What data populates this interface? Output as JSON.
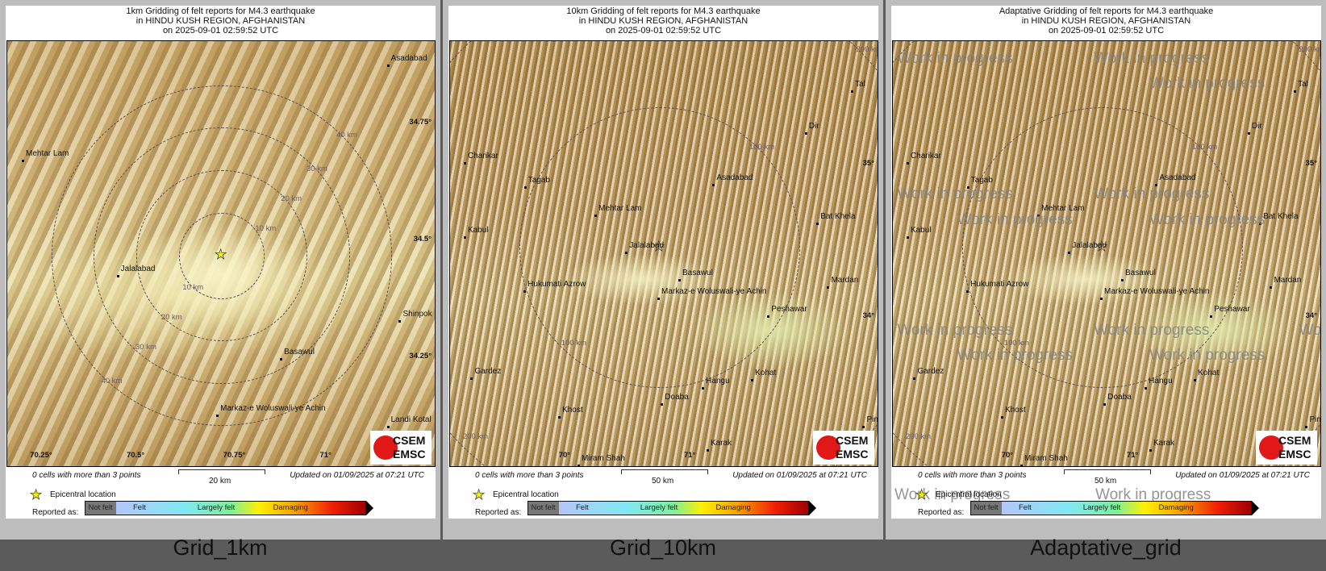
{
  "panels": [
    {
      "title": [
        "1km Gridding of felt reports for M4.3 earthquake",
        "in HINDU KUSH REGION, AFGHANISTAN",
        "on  2025-09-01 02:59:52 UTC"
      ],
      "label": "Grid_1km",
      "scale_label": "20 km",
      "places": [
        "Asadabad",
        "Mehtar Lam",
        "Jalalabad",
        "Basawul",
        "Markaz-e Woluswali-ye Achin",
        "Shinpok",
        "Landi Kotal"
      ],
      "lon_ticks": [
        "70.25°",
        "70.5°",
        "70.75°",
        "71°"
      ],
      "lat_ticks": [
        "34.75°",
        "34.5°",
        "34.25°"
      ],
      "ring_labels": [
        "10 km",
        "20 km",
        "30 km",
        "40 km",
        "10 km",
        "20 km",
        "30 km",
        "40 km"
      ],
      "watermark": false
    },
    {
      "title": [
        "10km Gridding of felt reports for M4.3 earthquake",
        "in HINDU KUSH REGION, AFGHANISTAN",
        "on  2025-09-01 02:59:52 UTC"
      ],
      "label": "Grid_10km",
      "scale_label": "50 km",
      "places": [
        "Tal",
        "Dir",
        "Charikar",
        "Tagab",
        "Asadabad",
        "Mehtar Lam",
        "Kabul",
        "Bat Khela",
        "Jalalabad",
        "Basawul",
        "Mardan",
        "Hukumati Azrow",
        "Markaz-e Woluswali-ye Achin",
        "Peshawar",
        "Gardez",
        "Kohat",
        "Hangu",
        "Doaba",
        "Khost",
        "Karak",
        "Miram Shah",
        "Pind"
      ],
      "lon_ticks": [
        "70°",
        "71°"
      ],
      "lat_ticks": [
        "35°",
        "34°"
      ],
      "ring_labels": [
        "100 km",
        "100 km",
        "200 km",
        "200 km"
      ],
      "watermark": false
    },
    {
      "title": [
        "Adaptative Gridding of felt reports for M4.3 earthquake",
        "in HINDU KUSH REGION, AFGHANISTAN",
        "on  2025-09-01 02:59:52 UTC"
      ],
      "label": "Adaptative_grid",
      "scale_label": "50 km",
      "places": [
        "Tal",
        "Dir",
        "Charikar",
        "Tagab",
        "Asadabad",
        "Mehtar Lam",
        "Kabul",
        "Bat Khela",
        "Jalalabad",
        "Basawul",
        "Mardan",
        "Hukumati Azrow",
        "Markaz-e Woluswali-ye Achin",
        "Peshawar",
        "Gardez",
        "Kohat",
        "Hangu",
        "Doaba",
        "Khost",
        "Karak",
        "Miram Shah",
        "Pind"
      ],
      "lon_ticks": [
        "70°",
        "71°"
      ],
      "lat_ticks": [
        "35°",
        "34°"
      ],
      "ring_labels": [
        "100 km",
        "100 km",
        "200 km",
        "200 km"
      ],
      "watermark": true
    }
  ],
  "footer": {
    "cells_note": "0 cells with more than 3 points",
    "updated": "Updated on 01/09/2025 at 07:21 UTC",
    "epicenter_legend": "Epicentral location",
    "reported_as": "Reported as:",
    "scale": [
      "Not felt",
      "Felt",
      "Largely felt",
      "Damaging"
    ],
    "scale_colors": [
      "#777777",
      "#b4c6f8",
      "#80e8f4",
      "#7ef09a",
      "#fff000",
      "#f5a000",
      "#f22000",
      "#a00000"
    ]
  },
  "logo": {
    "top": "CSEM",
    "bottom": "EMSC"
  },
  "watermark_text": "Work in progress",
  "colors": {
    "background": "#5b5b5b",
    "panel": "#bdbdbd",
    "epicenter": "#f4f000"
  }
}
